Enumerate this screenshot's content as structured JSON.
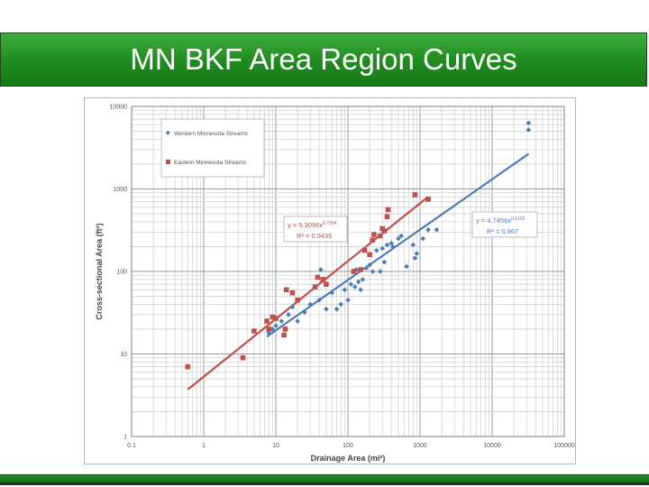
{
  "slide": {
    "title": "MN BKF Area Region Curves"
  },
  "chart_data": {
    "type": "scatter",
    "xlabel": "Drainage Area (mi²)",
    "ylabel": "Cross-sectional Area (ft²)",
    "x_scale": "log",
    "y_scale": "log",
    "xlim": [
      0.1,
      100000
    ],
    "ylim": [
      1,
      10000
    ],
    "x_ticks": [
      "0.1",
      "1",
      "10",
      "100",
      "1000",
      "10000",
      "100000"
    ],
    "y_ticks": [
      "1",
      "10",
      "100",
      "1000",
      "10000"
    ],
    "grid": true,
    "legend_position": "top-left",
    "series": [
      {
        "name": "Western Minnesota Streams",
        "marker": "diamond",
        "color": "#4a7ebb",
        "points": [
          [
            8,
            18
          ],
          [
            9,
            20
          ],
          [
            10,
            22
          ],
          [
            12,
            25
          ],
          [
            15,
            30
          ],
          [
            17,
            37
          ],
          [
            20,
            25
          ],
          [
            25,
            32
          ],
          [
            30,
            40
          ],
          [
            40,
            45
          ],
          [
            42,
            105
          ],
          [
            50,
            35
          ],
          [
            60,
            55
          ],
          [
            70,
            35
          ],
          [
            80,
            40
          ],
          [
            90,
            60
          ],
          [
            100,
            45
          ],
          [
            110,
            70
          ],
          [
            125,
            65
          ],
          [
            130,
            105
          ],
          [
            140,
            75
          ],
          [
            150,
            60
          ],
          [
            160,
            80
          ],
          [
            180,
            110
          ],
          [
            200,
            120
          ],
          [
            220,
            100
          ],
          [
            250,
            180
          ],
          [
            280,
            100
          ],
          [
            300,
            190
          ],
          [
            320,
            130
          ],
          [
            350,
            210
          ],
          [
            400,
            220
          ],
          [
            420,
            200
          ],
          [
            500,
            250
          ],
          [
            550,
            270
          ],
          [
            650,
            115
          ],
          [
            800,
            210
          ],
          [
            850,
            145
          ],
          [
            900,
            165
          ],
          [
            1100,
            250
          ],
          [
            1300,
            320
          ],
          [
            1700,
            320
          ],
          [
            32000,
            5200
          ],
          [
            32000,
            6300
          ]
        ],
        "fit_equation": "y = 4.7456x",
        "fit_exponent": "0.6102",
        "fit_r2": "R² = 0.867",
        "fit_coefficient": 4.7456,
        "fit_power": 0.6102,
        "fit_range": [
          7.5,
          32000
        ]
      },
      {
        "name": "Eastern Minnesota Streams",
        "marker": "square",
        "color": "#c0504d",
        "points": [
          [
            0.6,
            7
          ],
          [
            3.5,
            9
          ],
          [
            5,
            19
          ],
          [
            7.5,
            25
          ],
          [
            8,
            20
          ],
          [
            9,
            28
          ],
          [
            10,
            27
          ],
          [
            13,
            17
          ],
          [
            13.5,
            20
          ],
          [
            14,
            60
          ],
          [
            17,
            55
          ],
          [
            20,
            45
          ],
          [
            35,
            65
          ],
          [
            38,
            85
          ],
          [
            45,
            80
          ],
          [
            50,
            70
          ],
          [
            120,
            100
          ],
          [
            150,
            105
          ],
          [
            170,
            180
          ],
          [
            200,
            160
          ],
          [
            220,
            240
          ],
          [
            230,
            280
          ],
          [
            280,
            270
          ],
          [
            300,
            330
          ],
          [
            320,
            310
          ],
          [
            350,
            460
          ],
          [
            360,
            560
          ],
          [
            850,
            850
          ],
          [
            1300,
            750
          ]
        ],
        "fit_equation": "y = 5.3096x",
        "fit_exponent": "0.7004",
        "fit_r2": "R² = 0.9435",
        "fit_coefficient": 5.3096,
        "fit_power": 0.7004,
        "fit_range": [
          0.6,
          1300
        ]
      }
    ]
  }
}
